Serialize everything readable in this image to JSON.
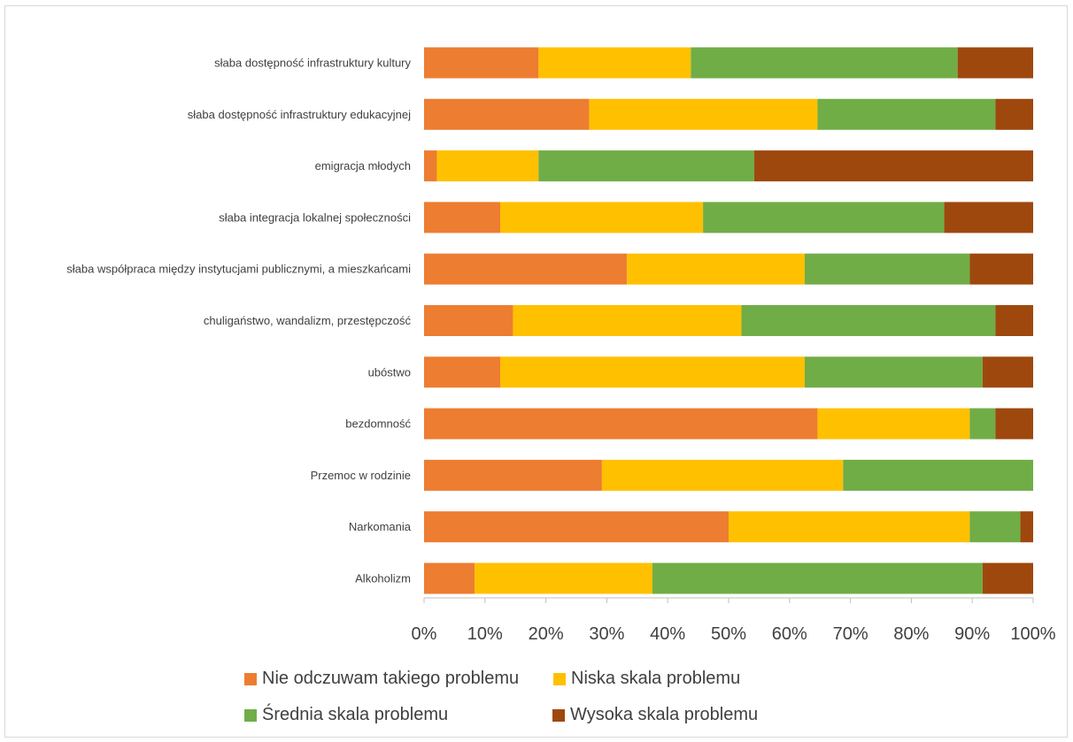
{
  "chart_data": {
    "type": "bar",
    "orientation": "horizontal",
    "stacked": "percent",
    "categories": [
      "słaba dostępność infrastruktury kultury",
      "słaba dostępność infrastruktury edukacyjnej",
      "emigracja młodych",
      "słaba integracja lokalnej społeczności",
      "słaba współpraca między instytucjami publicznymi, a mieszkańcami",
      "chuligaństwo, wandalizm, przestępczość",
      "ubóstwo",
      "bezdomność",
      "Przemoc w rodzinie",
      "Narkomania",
      "Alkoholizm"
    ],
    "series": [
      {
        "name": "Nie odczuwam takiego problemu",
        "color": "#ED7D31",
        "values": [
          18.8,
          27.1,
          2.1,
          12.5,
          33.3,
          14.6,
          12.5,
          64.6,
          29.2,
          50.0,
          8.3
        ]
      },
      {
        "name": "Niska skala problemu",
        "color": "#FFC000",
        "values": [
          25.0,
          37.5,
          16.7,
          33.3,
          29.2,
          37.5,
          50.0,
          25.0,
          39.6,
          39.6,
          29.2
        ]
      },
      {
        "name": "Średnia skala problemu",
        "color": "#70AD47",
        "values": [
          43.8,
          29.2,
          35.4,
          39.6,
          27.1,
          41.7,
          29.2,
          4.2,
          31.2,
          8.3,
          54.2
        ]
      },
      {
        "name": "Wysoka skala problemu",
        "color": "#9E480E",
        "values": [
          12.4,
          6.2,
          45.8,
          14.6,
          10.4,
          6.2,
          8.3,
          6.2,
          0.0,
          2.1,
          8.3
        ]
      }
    ],
    "xlim": [
      0,
      100
    ],
    "xticks": [
      "0%",
      "10%",
      "20%",
      "30%",
      "40%",
      "50%",
      "60%",
      "70%",
      "80%",
      "90%",
      "100%"
    ],
    "grid": false,
    "legend_position": "bottom"
  }
}
